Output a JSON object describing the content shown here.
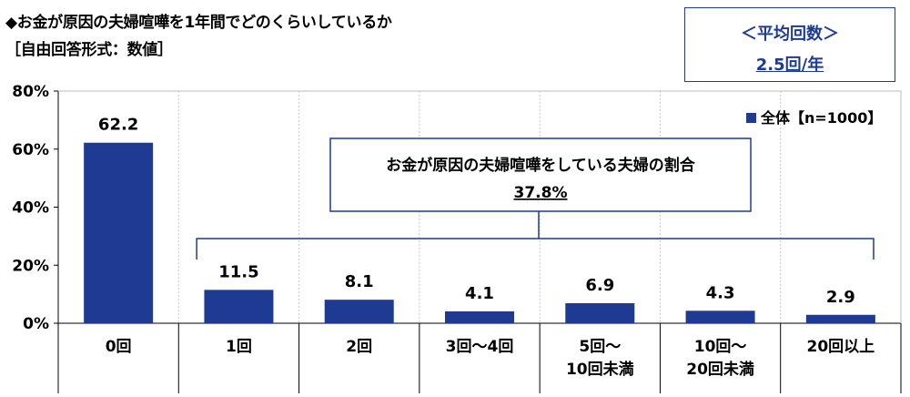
{
  "header": {
    "title": "◆お金が原因の夫婦喧嘩を1年間でどのくらいしているか",
    "subtitle": "［自由回答形式：数値］"
  },
  "average_box": {
    "label": "＜平均回数＞",
    "value": "2.5回/年"
  },
  "chart_data": {
    "type": "bar",
    "categories": [
      [
        "0回"
      ],
      [
        "1回"
      ],
      [
        "2回"
      ],
      [
        "3回～4回"
      ],
      [
        "5回～",
        "10回未満"
      ],
      [
        "10回～",
        "20回未満"
      ],
      [
        "20回以上"
      ]
    ],
    "series": [
      {
        "name": "全体【n=1000】",
        "values": [
          62.2,
          11.5,
          8.1,
          4.1,
          6.9,
          4.3,
          2.9
        ]
      }
    ],
    "ylim": [
      0,
      80
    ],
    "yticks": [
      0,
      20,
      40,
      60,
      80
    ],
    "ytick_labels": [
      "0%",
      "20%",
      "40%",
      "60%",
      "80%"
    ],
    "legend_placement": "top-right",
    "bar_color": "#1f3a93",
    "annotation": {
      "text": "お金が原因の夫婦喧嘩をしている夫婦の割合",
      "value": "37.8%"
    }
  }
}
